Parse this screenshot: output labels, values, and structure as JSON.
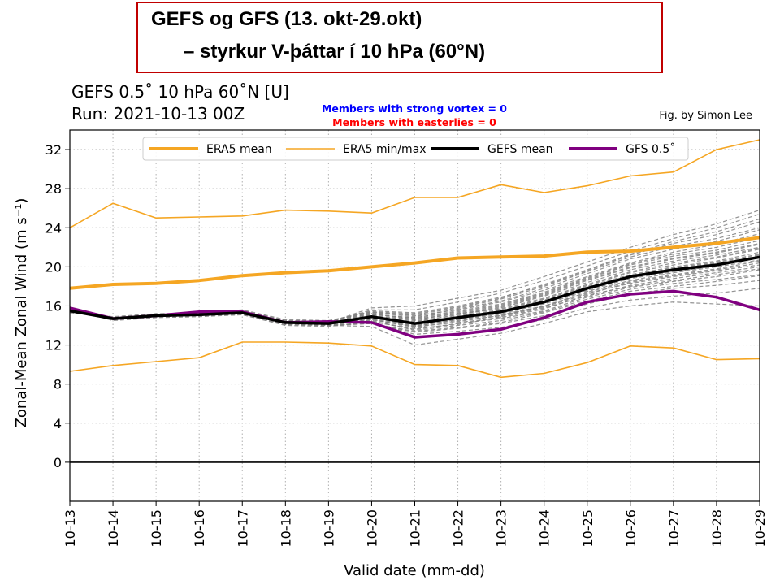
{
  "slide": {
    "title_line1": "GEFS og GFS (13. okt-29.okt)",
    "title_line2": "– styrkur V-þáttar í 10 hPa (60°N)"
  },
  "chart_data": {
    "type": "line",
    "title_line1": "GEFS 0.5˚  10 hPa 60˚N [U]",
    "title_line2": "Run: 2021-10-13 00Z",
    "annotation_vortex": "Members with strong vortex = 0",
    "annotation_easterlies": "Members with easterlies = 0",
    "credit": "Fig. by Simon Lee",
    "xlabel": "Valid date (mm-dd)",
    "ylabel": "Zonal-Mean Zonal Wind (m s⁻¹)",
    "ylim": [
      -4,
      34
    ],
    "yticks": [
      0,
      4,
      8,
      12,
      16,
      20,
      24,
      28,
      32
    ],
    "grid": true,
    "legend_position": "top",
    "categories": [
      "10-13",
      "10-14",
      "10-15",
      "10-16",
      "10-17",
      "10-18",
      "10-19",
      "10-20",
      "10-21",
      "10-22",
      "10-23",
      "10-24",
      "10-25",
      "10-26",
      "10-27",
      "10-28",
      "10-29"
    ],
    "colors": {
      "era5_mean": "#f5a623",
      "era5_minmax": "#f5a623",
      "gefs_mean": "#000000",
      "gfs": "#800080",
      "members": "#808080",
      "annotation_vortex": "#0000ff",
      "annotation_easterlies": "#ff0000"
    },
    "series": [
      {
        "name": "ERA5 mean",
        "key": "era5_mean",
        "values": [
          17.8,
          18.2,
          18.3,
          18.6,
          19.1,
          19.4,
          19.6,
          20.0,
          20.4,
          20.9,
          21.0,
          21.1,
          21.5,
          21.6,
          22.0,
          22.4,
          23.0
        ]
      },
      {
        "name": "ERA5 min/max",
        "key": "era5_max",
        "values": [
          24.0,
          26.5,
          25.0,
          25.1,
          25.2,
          25.8,
          25.7,
          25.5,
          27.1,
          27.1,
          28.4,
          27.6,
          28.3,
          29.3,
          29.7,
          32.0,
          33.0
        ]
      },
      {
        "key": "era5_min",
        "values": [
          9.3,
          9.9,
          10.3,
          10.7,
          12.3,
          12.3,
          12.2,
          11.9,
          10.0,
          9.9,
          8.7,
          9.1,
          10.2,
          11.9,
          11.7,
          10.5,
          10.6
        ]
      },
      {
        "name": "GEFS mean",
        "key": "gefs_mean",
        "values": [
          15.5,
          14.7,
          15.0,
          15.1,
          15.3,
          14.3,
          14.2,
          14.9,
          14.2,
          14.8,
          15.4,
          16.4,
          17.8,
          19.0,
          19.7,
          20.2,
          21.0
        ]
      },
      {
        "name": "GFS 0.5˚",
        "key": "gfs",
        "values": [
          15.8,
          14.7,
          15.0,
          15.4,
          15.4,
          14.3,
          14.4,
          14.3,
          12.8,
          13.1,
          13.6,
          14.8,
          16.4,
          17.2,
          17.5,
          16.9,
          15.6
        ]
      }
    ],
    "members": [
      [
        15.4,
        14.8,
        15.1,
        15.0,
        15.4,
        14.4,
        14.3,
        15.2,
        14.6,
        15.2,
        15.9,
        17.1,
        18.6,
        19.9,
        20.8,
        21.4,
        22.3
      ],
      [
        15.6,
        14.6,
        14.9,
        15.2,
        15.2,
        14.1,
        14.0,
        14.6,
        13.9,
        14.6,
        15.1,
        16.0,
        17.4,
        18.5,
        19.2,
        19.8,
        20.6
      ],
      [
        15.3,
        14.9,
        15.2,
        15.3,
        15.6,
        14.6,
        14.5,
        15.4,
        15.0,
        15.6,
        16.4,
        17.6,
        19.0,
        20.4,
        21.5,
        22.3,
        23.4
      ],
      [
        15.7,
        14.5,
        14.8,
        14.9,
        15.1,
        14.0,
        13.9,
        14.4,
        13.6,
        14.2,
        14.7,
        15.5,
        16.9,
        17.9,
        18.5,
        19.0,
        19.7
      ],
      [
        15.5,
        14.7,
        15.0,
        15.1,
        15.3,
        14.3,
        14.2,
        14.8,
        14.1,
        14.8,
        15.4,
        16.5,
        17.9,
        19.1,
        19.9,
        20.5,
        21.3
      ],
      [
        15.4,
        14.8,
        15.2,
        15.2,
        15.5,
        14.5,
        14.4,
        15.5,
        15.3,
        16.0,
        16.9,
        18.1,
        19.6,
        21.2,
        22.4,
        23.3,
        24.6
      ],
      [
        15.6,
        14.6,
        14.9,
        15.0,
        15.2,
        14.1,
        14.0,
        14.2,
        13.3,
        13.7,
        14.2,
        15.0,
        16.2,
        17.2,
        17.8,
        18.1,
        18.6
      ],
      [
        15.5,
        14.7,
        15.1,
        15.1,
        15.4,
        14.3,
        14.3,
        15.1,
        14.8,
        15.4,
        16.1,
        17.3,
        18.8,
        20.2,
        21.1,
        21.7,
        22.7
      ],
      [
        15.4,
        14.8,
        15.0,
        15.2,
        15.3,
        14.4,
        14.1,
        14.7,
        14.0,
        14.5,
        15.0,
        16.0,
        17.3,
        18.3,
        19.0,
        19.6,
        20.2
      ],
      [
        15.6,
        14.6,
        15.0,
        15.0,
        15.2,
        14.2,
        14.2,
        14.9,
        14.4,
        15.1,
        15.8,
        17.0,
        18.4,
        19.7,
        20.6,
        21.2,
        22.0
      ],
      [
        15.5,
        14.7,
        14.9,
        15.1,
        15.4,
        14.3,
        14.3,
        15.6,
        15.6,
        16.4,
        17.3,
        18.6,
        20.1,
        21.6,
        22.9,
        24.0,
        25.4
      ],
      [
        15.5,
        14.7,
        15.1,
        15.1,
        15.3,
        14.2,
        14.0,
        14.3,
        13.1,
        13.4,
        13.8,
        14.6,
        15.8,
        16.6,
        17.0,
        17.3,
        17.8
      ],
      [
        15.4,
        14.8,
        15.0,
        15.2,
        15.5,
        14.4,
        14.4,
        15.3,
        14.9,
        15.7,
        16.5,
        17.8,
        19.3,
        20.8,
        21.8,
        22.6,
        23.8
      ],
      [
        15.6,
        14.6,
        15.0,
        15.0,
        15.1,
        14.1,
        14.1,
        14.6,
        13.8,
        14.4,
        15.0,
        15.9,
        17.2,
        18.4,
        19.1,
        19.7,
        20.4
      ],
      [
        15.5,
        14.8,
        15.1,
        15.1,
        15.3,
        14.3,
        14.2,
        15.0,
        14.5,
        15.0,
        15.6,
        16.7,
        18.1,
        19.4,
        20.2,
        20.9,
        21.8
      ],
      [
        15.4,
        14.7,
        14.9,
        15.2,
        15.4,
        14.4,
        14.3,
        15.8,
        16.0,
        16.8,
        17.6,
        19.0,
        20.5,
        22.0,
        23.3,
        24.4,
        25.8
      ],
      [
        15.6,
        14.6,
        15.0,
        15.0,
        15.2,
        14.2,
        14.0,
        13.9,
        12.0,
        12.6,
        13.2,
        14.2,
        15.4,
        16.0,
        16.4,
        16.2,
        16.0
      ],
      [
        15.5,
        14.7,
        15.1,
        15.2,
        15.3,
        14.3,
        14.3,
        15.2,
        14.7,
        15.3,
        16.0,
        17.2,
        18.7,
        20.0,
        20.9,
        21.5,
        22.4
      ],
      [
        15.4,
        14.8,
        15.0,
        15.1,
        15.4,
        14.4,
        14.2,
        14.7,
        14.2,
        14.7,
        15.2,
        16.2,
        17.5,
        18.6,
        19.4,
        20.0,
        20.7
      ],
      [
        15.6,
        14.6,
        14.9,
        15.1,
        15.2,
        14.2,
        14.1,
        14.5,
        13.5,
        14.0,
        14.5,
        15.4,
        16.7,
        17.7,
        18.3,
        18.7,
        19.2
      ],
      [
        15.5,
        14.7,
        15.2,
        15.2,
        15.5,
        14.5,
        14.4,
        15.3,
        15.1,
        15.8,
        16.7,
        18.0,
        19.5,
        21.0,
        22.1,
        22.9,
        24.0
      ],
      [
        15.5,
        14.8,
        15.0,
        15.0,
        15.3,
        14.2,
        14.1,
        14.8,
        14.0,
        14.6,
        15.3,
        16.3,
        17.6,
        18.8,
        19.5,
        20.1,
        20.9
      ],
      [
        15.4,
        14.7,
        15.0,
        15.2,
        15.4,
        14.3,
        14.3,
        15.0,
        14.6,
        15.2,
        15.7,
        16.8,
        18.2,
        19.5,
        20.4,
        21.0,
        21.9
      ],
      [
        15.6,
        14.6,
        15.1,
        15.1,
        15.2,
        14.3,
        14.2,
        14.4,
        13.7,
        14.1,
        14.9,
        15.8,
        17.0,
        18.1,
        18.8,
        19.4,
        20.0
      ],
      [
        15.5,
        14.7,
        14.9,
        15.1,
        15.3,
        14.2,
        14.2,
        15.1,
        14.8,
        15.5,
        16.2,
        17.4,
        18.9,
        20.3,
        21.3,
        22.0,
        23.0
      ],
      [
        15.4,
        14.8,
        15.1,
        15.0,
        15.4,
        14.4,
        14.3,
        14.6,
        13.9,
        14.3,
        14.8,
        15.7,
        17.1,
        18.0,
        18.6,
        19.2,
        19.8
      ],
      [
        15.6,
        14.6,
        15.0,
        15.2,
        15.3,
        14.3,
        14.1,
        14.9,
        14.3,
        14.9,
        15.5,
        16.6,
        18.0,
        19.2,
        20.0,
        20.6,
        21.5
      ],
      [
        15.5,
        14.7,
        15.0,
        15.1,
        15.2,
        14.1,
        14.0,
        14.2,
        13.4,
        13.8,
        14.3,
        15.3,
        16.5,
        17.5,
        18.0,
        18.5,
        19.1
      ],
      [
        15.4,
        14.8,
        15.1,
        15.2,
        15.5,
        14.5,
        14.4,
        15.4,
        15.2,
        15.9,
        16.8,
        18.2,
        19.7,
        21.3,
        22.6,
        23.6,
        24.9
      ],
      [
        15.6,
        14.7,
        14.9,
        15.0,
        15.3,
        14.3,
        14.2,
        14.8,
        14.1,
        14.7,
        15.3,
        16.4,
        17.8,
        19.0,
        19.8,
        20.4,
        21.2
      ]
    ]
  }
}
